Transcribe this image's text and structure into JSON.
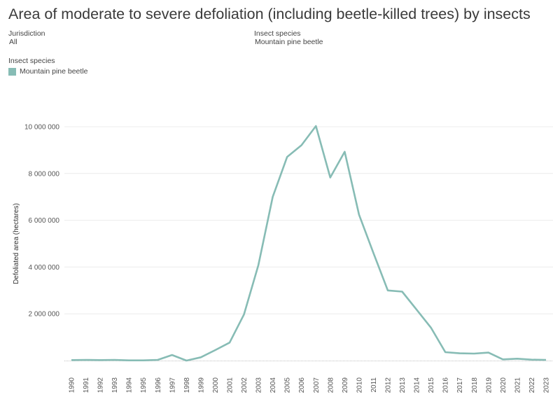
{
  "header": {
    "title": "Area of moderate to severe defoliation (including beetle-killed trees) by insects"
  },
  "filters": {
    "jurisdiction": {
      "label": "Jurisdiction",
      "value": "All"
    },
    "species": {
      "label": "Insect species",
      "value": "Mountain pine beetle"
    }
  },
  "legend": {
    "title": "Insect species",
    "item": "Mountain pine beetle"
  },
  "colors": {
    "series": "#87bcb5",
    "grid": "#ececec",
    "baseline": "#aaaaaa"
  },
  "chart_data": {
    "type": "line",
    "title": "Area of moderate to severe defoliation (including beetle-killed trees) by insects",
    "xlabel": "",
    "ylabel": "Defoliated area (hectares)",
    "ylim": [
      0,
      10000000
    ],
    "y_ticks": [
      2000000,
      4000000,
      6000000,
      8000000,
      10000000
    ],
    "y_tick_labels": [
      "2 000 000",
      "4 000 000",
      "6 000 000",
      "8 000 000",
      "10 000 000"
    ],
    "grid": true,
    "legend_position": "top-left",
    "x": [
      "1990",
      "1991",
      "1992",
      "1993",
      "1994",
      "1995",
      "1996",
      "1997",
      "1998",
      "1999",
      "2000",
      "2001",
      "2002",
      "2003",
      "2004",
      "2005",
      "2006",
      "2007",
      "2008",
      "2009",
      "2010",
      "2011",
      "2012",
      "2013",
      "2014",
      "2015",
      "2016",
      "2017",
      "2018",
      "2019",
      "2020",
      "2021",
      "2022",
      "2023"
    ],
    "series": [
      {
        "name": "Mountain pine beetle",
        "values": [
          20000,
          30000,
          20000,
          30000,
          10000,
          10000,
          30000,
          240000,
          0,
          140000,
          450000,
          770000,
          1970000,
          4080000,
          7000000,
          8710000,
          9210000,
          10030000,
          7830000,
          8930000,
          6240000,
          4600000,
          3000000,
          2950000,
          2180000,
          1410000,
          360000,
          310000,
          300000,
          340000,
          50000,
          80000,
          40000,
          30000
        ]
      }
    ]
  }
}
